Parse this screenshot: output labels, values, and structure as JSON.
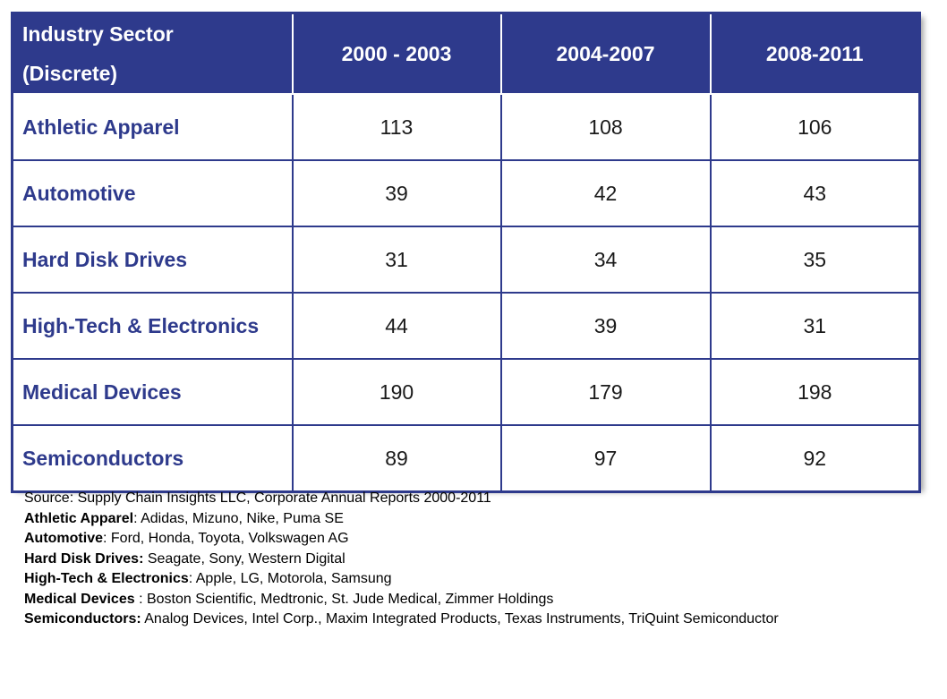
{
  "chart_data": {
    "type": "table",
    "header": {
      "sector_line1": "Industry Sector",
      "sector_line2": "(Discrete)",
      "periods": [
        "2000 - 2003",
        "2004-2007",
        "2008-2011"
      ]
    },
    "rows": [
      {
        "sector": "Athletic Apparel",
        "values": [
          "113",
          "108",
          "106"
        ]
      },
      {
        "sector": "Automotive",
        "values": [
          "39",
          "42",
          "43"
        ]
      },
      {
        "sector": "Hard Disk Drives",
        "values": [
          "31",
          "34",
          "35"
        ]
      },
      {
        "sector": "High-Tech & Electronics",
        "values": [
          "44",
          "39",
          "31"
        ]
      },
      {
        "sector": "Medical Devices",
        "values": [
          "190",
          "179",
          "198"
        ]
      },
      {
        "sector": "Semiconductors",
        "values": [
          "89",
          "97",
          "92"
        ]
      }
    ]
  },
  "footnotes": {
    "source": "Source:  Supply Chain Insights LLC, Corporate Annual Reports 2000-2011",
    "companies": [
      {
        "label": "Athletic Apparel",
        "sep": ":  ",
        "text": "Adidas, Mizuno, Nike, Puma SE"
      },
      {
        "label": "Automotive",
        "sep": ":  ",
        "text": "Ford, Honda, Toyota, Volkswagen AG"
      },
      {
        "label": "Hard Disk Drives:",
        "sep": "  ",
        "text": "Seagate, Sony, Western Digital"
      },
      {
        "label": "High-Tech & Electronics",
        "sep": ":  ",
        "text": "Apple, LG, Motorola, Samsung"
      },
      {
        "label": "Medical Devices",
        "sep": " :  ",
        "text": "Boston Scientific, Medtronic, St. Jude Medical, Zimmer Holdings"
      },
      {
        "label": "Semiconductors:",
        "sep": " ",
        "text": "Analog Devices, Intel Corp., Maxim Integrated Products, Texas Instruments, TriQuint Semiconductor"
      }
    ]
  }
}
